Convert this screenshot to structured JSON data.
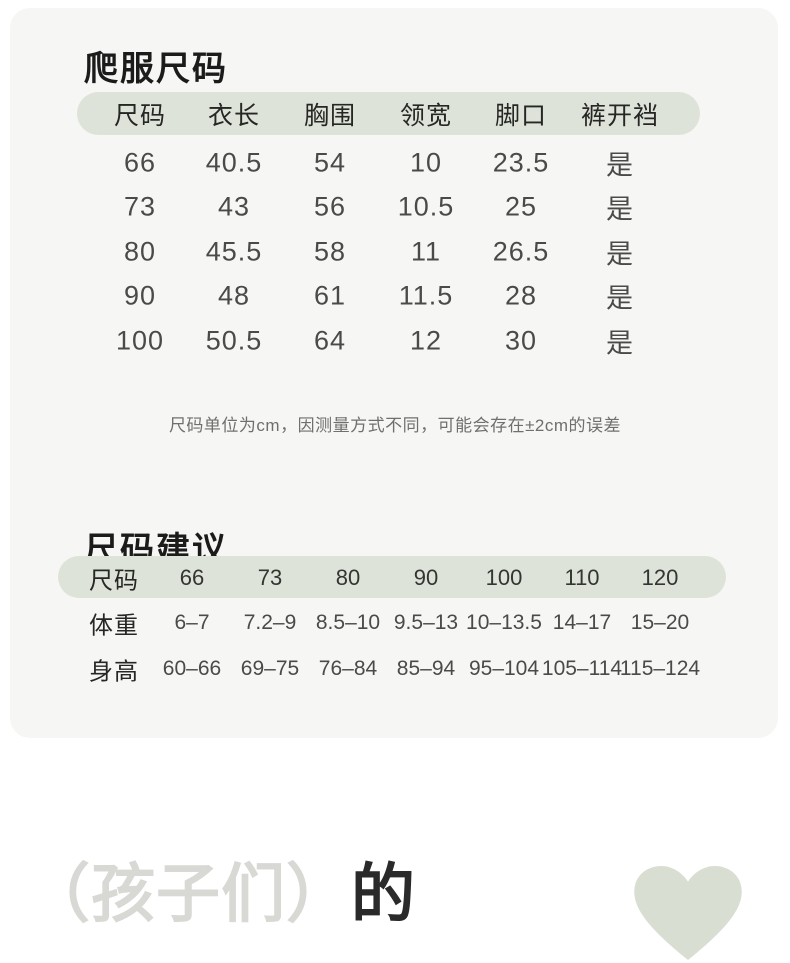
{
  "size_table": {
    "title": "爬服尺码",
    "columns": [
      "尺码",
      "衣长",
      "胸围",
      "领宽",
      "脚口",
      "裤开裆"
    ],
    "rows": [
      [
        "66",
        "40.5",
        "54",
        "10",
        "23.5",
        "是"
      ],
      [
        "73",
        "43",
        "56",
        "10.5",
        "25",
        "是"
      ],
      [
        "80",
        "45.5",
        "58",
        "11",
        "26.5",
        "是"
      ],
      [
        "90",
        "48",
        "61",
        "11.5",
        "28",
        "是"
      ],
      [
        "100",
        "50.5",
        "64",
        "12",
        "30",
        "是"
      ]
    ],
    "note": "尺码单位为cm，因测量方式不同，可能会存在±2cm的误差"
  },
  "size_advice": {
    "title": "尺码建议",
    "header": {
      "label": "尺码",
      "values": [
        "66",
        "73",
        "80",
        "90",
        "100",
        "110",
        "120"
      ]
    },
    "rows": [
      {
        "label": "体重",
        "values": [
          "6–7",
          "7.2–9",
          "8.5–10",
          "9.5–13",
          "10–13.5",
          "14–17",
          "15–20"
        ]
      },
      {
        "label": "身高",
        "values": [
          "60–66",
          "69–75",
          "76–84",
          "85–94",
          "95–104",
          "105–114",
          "115–124"
        ]
      }
    ]
  },
  "footer": {
    "light_text": "（孩子们）",
    "dark_text": "的"
  },
  "icons": {
    "heart": "heart-shape-icon"
  },
  "colors": {
    "card_bg": "#f6f6f4",
    "pill_bg": "#dee3d9",
    "heart": "#d9ded3",
    "title_text": "#1b1b1b",
    "data_text": "#4a4a48",
    "note_text": "#6f6f6d",
    "footer_light": "#d8d8d4",
    "footer_dark": "#2a2a2a"
  }
}
